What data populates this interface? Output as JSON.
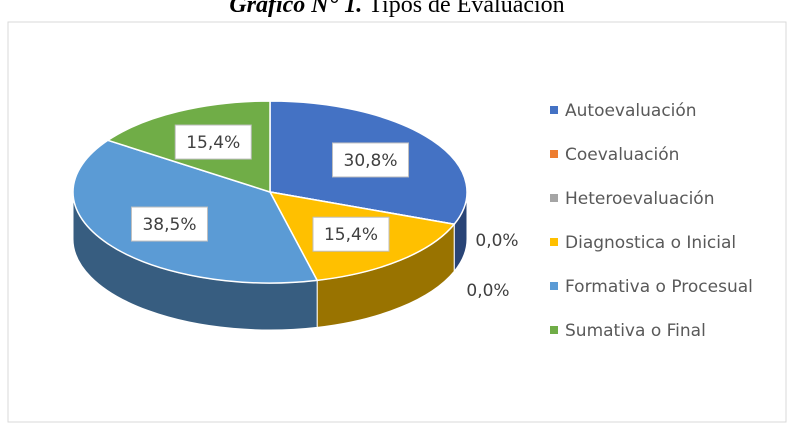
{
  "chart_data": {
    "type": "pie3d",
    "title_label": "Gráfico N° 1.",
    "title": "Tipos de Evaluación",
    "categories": [
      "Autoevaluación",
      "Coevaluación",
      "Heteroevaluación",
      "Diagnostica o Inicial",
      "Formativa o Procesual",
      "Sumativa o Final"
    ],
    "values": [
      30.8,
      0,
      0,
      15.4,
      38.5,
      15.4
    ],
    "value_labels": [
      "30,8%",
      "0,0%",
      "0,0%",
      "15,4%",
      "38,5%",
      "15,4%"
    ],
    "colors": [
      "#4472c4",
      "#ed7d31",
      "#a5a5a5",
      "#ffc000",
      "#5b9bd5",
      "#70ad47"
    ],
    "legend": "right"
  }
}
